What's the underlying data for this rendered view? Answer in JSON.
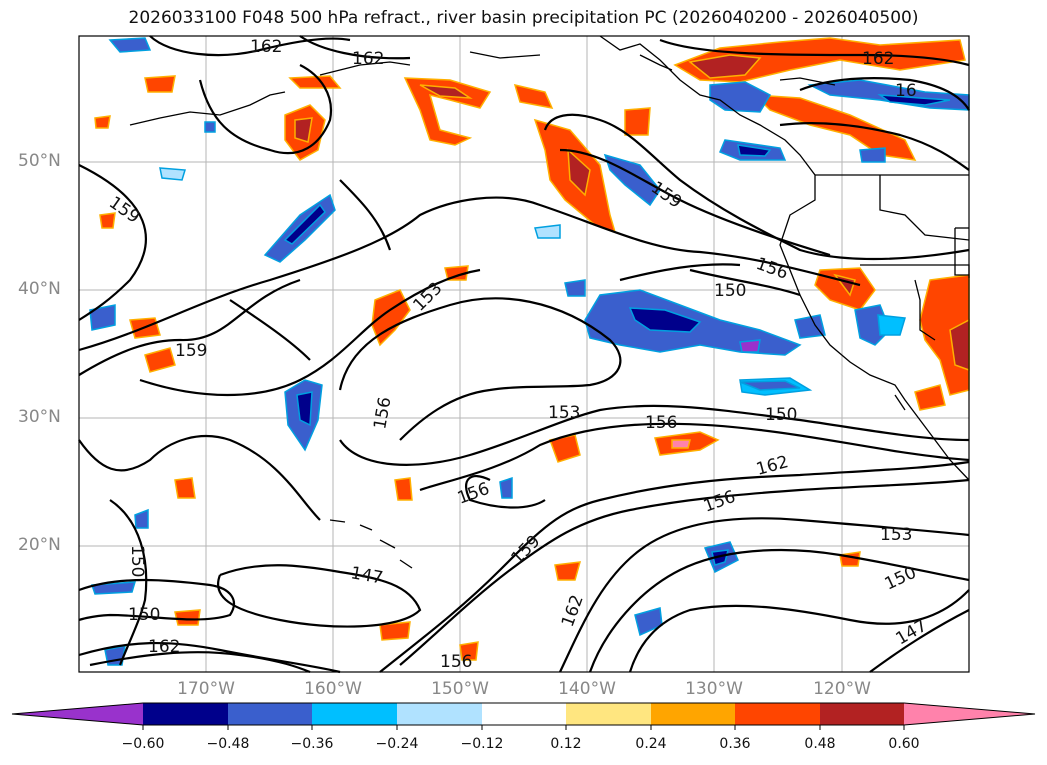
{
  "title": "2026033100 F048 500 hPa refract., river basin precipitation PC (2026040200 - 2026040500)",
  "axes": {
    "lat_ticks": [
      "50°N",
      "40°N",
      "30°N",
      "20°N"
    ],
    "lon_ticks": [
      "170°W",
      "160°W",
      "150°W",
      "140°W",
      "130°W",
      "120°W"
    ]
  },
  "colorbar": {
    "ticks": [
      "−0.60",
      "−0.48",
      "−0.36",
      "−0.24",
      "−0.12",
      "0.12",
      "0.24",
      "0.36",
      "0.48",
      "0.60"
    ],
    "colors": [
      "#9932cc",
      "#00008b",
      "#3a5fcd",
      "#00bfff",
      "#b0e2ff",
      "#ffffff",
      "#ffe680",
      "#ffa500",
      "#ff4500",
      "#b22222",
      "#ff82ab"
    ]
  },
  "contour_labels": [
    "162",
    "162",
    "162",
    "16",
    "159",
    "159",
    "159",
    "159",
    "156",
    "156",
    "156",
    "156",
    "156",
    "156",
    "153",
    "153",
    "153",
    "150",
    "150",
    "150",
    "150",
    "150",
    "147",
    "147",
    "162",
    "162",
    "162"
  ]
}
